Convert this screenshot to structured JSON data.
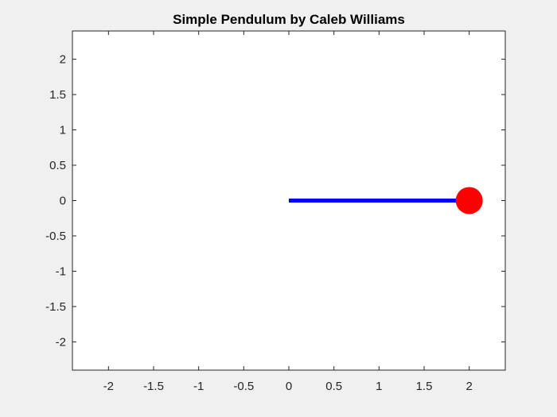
{
  "chart_data": {
    "type": "line",
    "title": "Simple Pendulum by Caleb Williams",
    "xlabel": "",
    "ylabel": "",
    "xlim": [
      -2.4,
      2.4
    ],
    "ylim": [
      -2.4,
      2.4
    ],
    "x_ticks": [
      -2,
      -1.5,
      -1,
      -0.5,
      0,
      0.5,
      1,
      1.5,
      2
    ],
    "x_tick_labels": [
      "-2",
      "-1.5",
      "-1",
      "-0.5",
      "0",
      "0.5",
      "1",
      "1.5",
      "2"
    ],
    "y_ticks": [
      2,
      1.5,
      1,
      0.5,
      0,
      -0.5,
      -1,
      -1.5,
      -2
    ],
    "y_tick_labels": [
      "2",
      "1.5",
      "1",
      "0.5",
      "0",
      "-0.5",
      "-1",
      "-1.5",
      "-2"
    ],
    "grid": false,
    "series": [
      {
        "kind": "rod",
        "x": [
          0,
          2
        ],
        "y": [
          0,
          0
        ],
        "color": "#0000ff"
      },
      {
        "kind": "bob",
        "x": [
          2
        ],
        "y": [
          0
        ],
        "color": "#ff0000"
      }
    ]
  },
  "colors": {
    "figure_background": "#f0f0f0",
    "axes_background": "#ffffff",
    "axes_edge": "#262626"
  }
}
